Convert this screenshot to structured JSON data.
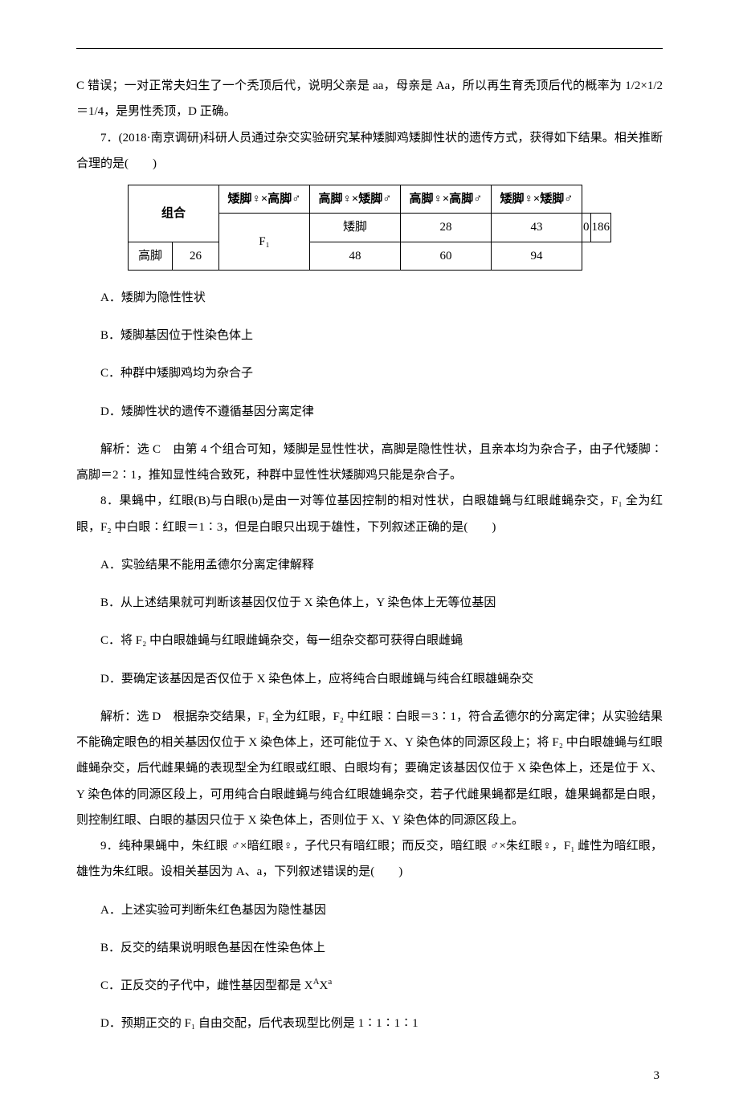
{
  "intro_continuation": "C 错误；一对正常夫妇生了一个秃顶后代，说明父亲是 aa，母亲是 Aa，所以再生育秃顶后代的概率为 1/2×1/2＝1/4，是男性秃顶，D 正确。",
  "q7": {
    "stem": "7．(2018·南京调研)科研人员通过杂交实验研究某种矮脚鸡矮脚性状的遗传方式，获得如下结果。相关推断合理的是(　　)",
    "table": {
      "group_label": "组合",
      "pairs": [
        "矮脚♀×高脚♂",
        "高脚♀×矮脚♂",
        "高脚♀×高脚♂",
        "矮脚♀×矮脚♂"
      ],
      "f1_label": "F₁",
      "rows": [
        {
          "label": "矮脚",
          "vals": [
            "28",
            "43",
            "0",
            "186"
          ]
        },
        {
          "label": "高脚",
          "vals": [
            "26",
            "48",
            "60",
            "94"
          ]
        }
      ]
    },
    "options": {
      "A": "A．矮脚为隐性性状",
      "B": "B．矮脚基因位于性染色体上",
      "C": "C．种群中矮脚鸡均为杂合子",
      "D": "D．矮脚性状的遗传不遵循基因分离定律"
    },
    "explain": "解析：选 C　由第 4 个组合可知，矮脚是显性性状，高脚是隐性性状，且亲本均为杂合子，由子代矮脚∶高脚＝2∶1，推知显性纯合致死，种群中显性性状矮脚鸡只能是杂合子。"
  },
  "q8": {
    "stem": "8．果蝇中，红眼(B)与白眼(b)是由一对等位基因控制的相对性状，白眼雄蝇与红眼雌蝇杂交，F₁ 全为红眼，F₂ 中白眼∶红眼＝1∶3，但是白眼只出现于雄性，下列叙述正确的是(　　)",
    "options": {
      "A": "A．实验结果不能用孟德尔分离定律解释",
      "B": "B．从上述结果就可判断该基因仅位于 X 染色体上，Y 染色体上无等位基因",
      "C": "C．将 F₂ 中白眼雄蝇与红眼雌蝇杂交，每一组杂交都可获得白眼雌蝇",
      "D": "D．要确定该基因是否仅位于 X 染色体上，应将纯合白眼雌蝇与纯合红眼雄蝇杂交"
    },
    "explain": "解析：选 D　根据杂交结果，F₁ 全为红眼，F₂ 中红眼∶白眼＝3∶1，符合孟德尔的分离定律；从实验结果不能确定眼色的相关基因仅位于 X 染色体上，还可能位于 X、Y 染色体的同源区段上；将 F₂ 中白眼雄蝇与红眼雌蝇杂交，后代雌果蝇的表现型全为红眼或红眼、白眼均有；要确定该基因仅位于 X 染色体上，还是位于 X、Y 染色体的同源区段上，可用纯合白眼雌蝇与纯合红眼雄蝇杂交，若子代雌果蝇都是红眼，雄果蝇都是白眼，则控制红眼、白眼的基因只位于 X 染色体上，否则位于 X、Y 染色体的同源区段上。"
  },
  "q9": {
    "stem": "9．纯种果蝇中，朱红眼 ♂×暗红眼♀，子代只有暗红眼；而反交，暗红眼 ♂×朱红眼♀，F₁ 雌性为暗红眼，雄性为朱红眼。设相关基因为 A、a，下列叙述错误的是(　　)",
    "options": {
      "A": "A．上述实验可判断朱红色基因为隐性基因",
      "B": "B．反交的结果说明眼色基因在性染色体上",
      "C_pre": "C．正反交的子代中，雌性基因型都是 X",
      "C_sup1": "A",
      "C_mid": "X",
      "C_sup2": "a",
      "D": "D．预期正交的 F₁ 自由交配，后代表现型比例是 1∶1∶1∶1"
    }
  },
  "page_number": "3"
}
